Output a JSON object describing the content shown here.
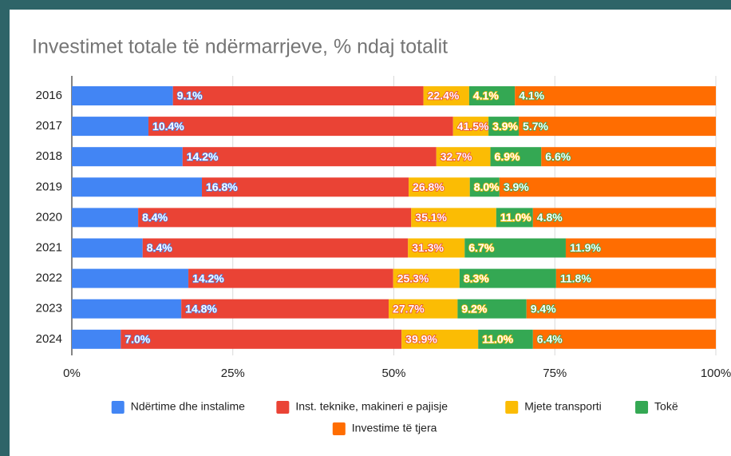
{
  "chart_data": {
    "type": "stacked-bar-horizontal",
    "title": "Investimet totale të ndërmarrjeve, % ndaj totalit",
    "categories": [
      "2016",
      "2017",
      "2018",
      "2019",
      "2020",
      "2021",
      "2022",
      "2023",
      "2024"
    ],
    "series": [
      {
        "name": "Ndërtime dhe instalime",
        "color": "#4285f4",
        "values": [
          15.7,
          11.9,
          17.2,
          20.2,
          10.3,
          11.0,
          18.1,
          17.0,
          7.6
        ]
      },
      {
        "name": "Inst. teknike, makineri e pajisje",
        "color": "#ea4335",
        "values": [
          38.9,
          47.3,
          39.4,
          32.1,
          42.4,
          41.2,
          31.8,
          32.2,
          43.6
        ]
      },
      {
        "name": "Mjete transporti",
        "color": "#fbbc04",
        "values": [
          7.1,
          5.5,
          8.4,
          9.5,
          13.2,
          8.8,
          10.3,
          10.7,
          11.9
        ]
      },
      {
        "name": "Tokë",
        "color": "#34a853",
        "values": [
          7.1,
          4.7,
          7.9,
          4.6,
          5.7,
          15.7,
          15.0,
          10.7,
          8.5
        ]
      },
      {
        "name": "Investime të tjera",
        "color": "#ff6d01",
        "values": [
          31.2,
          30.6,
          27.1,
          33.6,
          28.4,
          23.3,
          24.8,
          29.4,
          28.4
        ]
      }
    ],
    "bar_labels": [
      [
        "9.1%",
        "22.4%",
        "4.1%",
        "4.1%"
      ],
      [
        "10.4%",
        "41.5%",
        "3.9%",
        "5.7%"
      ],
      [
        "14.2%",
        "32.7%",
        "6.9%",
        "6.6%"
      ],
      [
        "16.8%",
        "26.8%",
        "8.0%",
        "3.9%"
      ],
      [
        "8.4%",
        "35.1%",
        "11.0%",
        "4.8%"
      ],
      [
        "8.4%",
        "31.3%",
        "6.7%",
        "11.9%"
      ],
      [
        "14.2%",
        "25.3%",
        "8.3%",
        "11.8%"
      ],
      [
        "14.8%",
        "27.7%",
        "9.2%",
        "9.4%"
      ],
      [
        "7.0%",
        "39.9%",
        "11.0%",
        "6.4%"
      ]
    ],
    "xlim": [
      0,
      100
    ],
    "xticks": [
      {
        "value": 0,
        "label": "0%"
      },
      {
        "value": 25,
        "label": "25%"
      },
      {
        "value": 50,
        "label": "50%"
      },
      {
        "value": 75,
        "label": "75%"
      },
      {
        "value": 100,
        "label": "100%"
      }
    ],
    "grid": true,
    "legend": "bottom"
  }
}
